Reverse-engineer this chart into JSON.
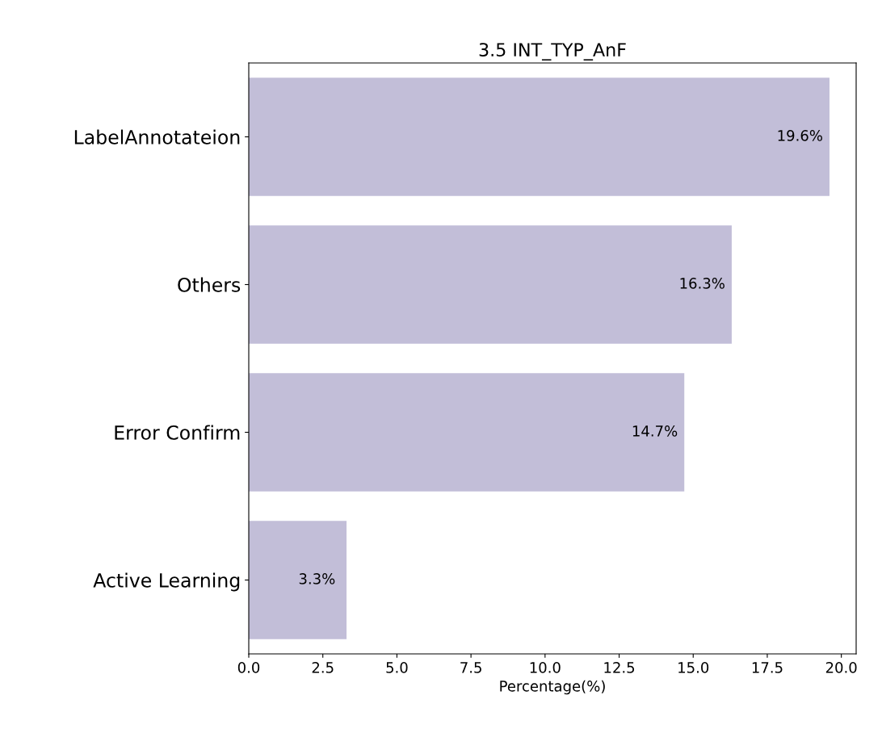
{
  "chart_data": {
    "type": "bar",
    "orientation": "horizontal",
    "title": "3.5 INT_TYP_AnF",
    "xlabel": "Percentage(%)",
    "categories": [
      "LabelAnnotateion",
      "Others",
      "Error Confirm",
      "Active Learning"
    ],
    "values": [
      19.6,
      16.3,
      14.7,
      3.3
    ],
    "value_labels": [
      "19.6%",
      "16.3%",
      "14.7%",
      "3.3%"
    ],
    "color": "#c2bed8",
    "xlim": [
      0,
      20.5
    ],
    "xticks": [
      {
        "value": 0,
        "label": "0.0"
      },
      {
        "value": 2.5,
        "label": "2.5"
      },
      {
        "value": 5,
        "label": "5.0"
      },
      {
        "value": 7.5,
        "label": "7.5"
      },
      {
        "value": 10,
        "label": "10.0"
      },
      {
        "value": 12.5,
        "label": "12.5"
      },
      {
        "value": 15,
        "label": "15.0"
      },
      {
        "value": 17.5,
        "label": "17.5"
      },
      {
        "value": 20,
        "label": "20.0"
      }
    ],
    "grid": false,
    "legend": false
  }
}
